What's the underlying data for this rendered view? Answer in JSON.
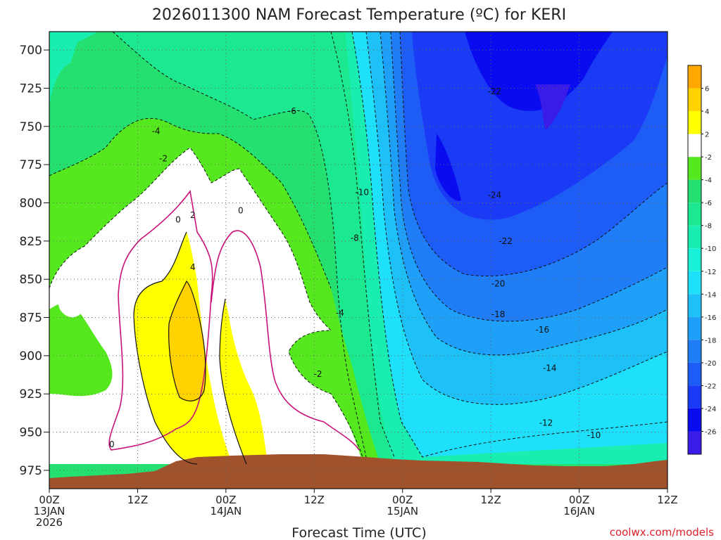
{
  "chart_data": {
    "type": "heatmap",
    "title": "2026011300 NAM Forecast Temperature (ºC) for KERI",
    "xlabel": "Forecast Time (UTC)",
    "ylabel": "",
    "x_ticks": [
      {
        "hour": 0,
        "line1": "00Z",
        "line2": "13JAN",
        "line3": "2026"
      },
      {
        "hour": 12,
        "line1": "12Z",
        "line2": "",
        "line3": ""
      },
      {
        "hour": 24,
        "line1": "00Z",
        "line2": "14JAN",
        "line3": ""
      },
      {
        "hour": 36,
        "line1": "12Z",
        "line2": "",
        "line3": ""
      },
      {
        "hour": 48,
        "line1": "00Z",
        "line2": "15JAN",
        "line3": ""
      },
      {
        "hour": 60,
        "line1": "12Z",
        "line2": "",
        "line3": ""
      },
      {
        "hour": 72,
        "line1": "00Z",
        "line2": "16JAN",
        "line3": ""
      },
      {
        "hour": 84,
        "line1": "12Z",
        "line2": "",
        "line3": ""
      }
    ],
    "y_ticks": [
      700,
      725,
      750,
      775,
      800,
      825,
      850,
      875,
      900,
      925,
      950,
      975
    ],
    "xlim": [
      0,
      84
    ],
    "ylim": [
      987,
      688
    ],
    "grid": true,
    "colorbar": {
      "bounds": [
        -28,
        -26,
        -24,
        -22,
        -20,
        -18,
        -16,
        -14,
        -12,
        -10,
        -8,
        -6,
        -4,
        -2,
        2,
        4,
        6,
        8
      ],
      "colors": [
        "#3a1ce8",
        "#0a0cf0",
        "#1a3af5",
        "#1d5cf5",
        "#1f7ef7",
        "#1ea0f8",
        "#1ec0f8",
        "#1ee0fa",
        "#19f0d8",
        "#19eeb0",
        "#1ce890",
        "#23e070",
        "#55e81e",
        "#ffffff",
        "#ffff00",
        "#ffd200",
        "#ffa800"
      ],
      "labels": [
        "-26",
        "-24",
        "-22",
        "-20",
        "-18",
        "-16",
        "-14",
        "-12",
        "-10",
        "-8",
        "-6",
        "-4",
        "-2",
        "2",
        "4",
        "6"
      ]
    },
    "contour_labels": [
      {
        "text": "-22",
        "hour": 60.5,
        "p": 727
      },
      {
        "text": "-6",
        "hour": 33,
        "p": 740
      },
      {
        "text": "-4",
        "hour": 14.5,
        "p": 753
      },
      {
        "text": "-2",
        "hour": 15.5,
        "p": 771
      },
      {
        "text": "-10",
        "hour": 42.5,
        "p": 793
      },
      {
        "text": "-24",
        "hour": 60.5,
        "p": 795
      },
      {
        "text": "0",
        "hour": 17.5,
        "p": 811
      },
      {
        "text": "2",
        "hour": 19.5,
        "p": 808
      },
      {
        "text": "0",
        "hour": 26,
        "p": 805
      },
      {
        "text": "-8",
        "hour": 41.5,
        "p": 823
      },
      {
        "text": "-22",
        "hour": 62,
        "p": 825
      },
      {
        "text": "4",
        "hour": 19.5,
        "p": 842
      },
      {
        "text": "-20",
        "hour": 61,
        "p": 853
      },
      {
        "text": "-4",
        "hour": 39.5,
        "p": 872
      },
      {
        "text": "-18",
        "hour": 61,
        "p": 873
      },
      {
        "text": "-16",
        "hour": 67,
        "p": 883
      },
      {
        "text": "-2",
        "hour": 36.5,
        "p": 912
      },
      {
        "text": "-14",
        "hour": 68,
        "p": 908
      },
      {
        "text": "-12",
        "hour": 67.5,
        "p": 944
      },
      {
        "text": "0",
        "hour": 8.5,
        "p": 958
      },
      {
        "text": "-10",
        "hour": 74,
        "p": 952
      }
    ]
  },
  "credit": "coolwx.com/models"
}
